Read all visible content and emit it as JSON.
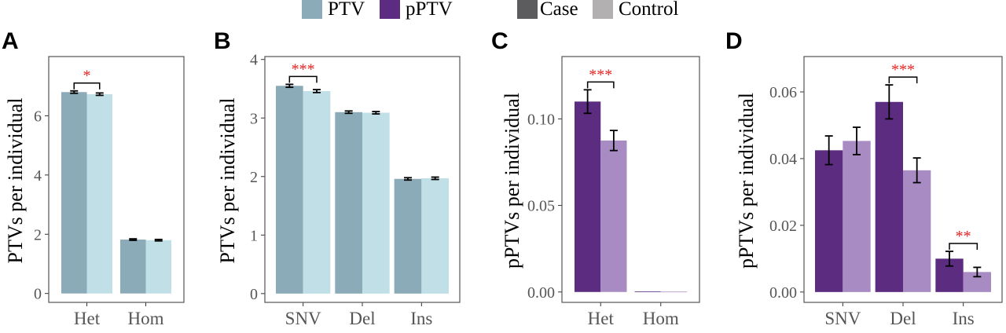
{
  "legend": {
    "items": [
      {
        "label": "PTV",
        "color": "#8aabb7"
      },
      {
        "label": "pPTV",
        "color": "#5b2c7f"
      },
      {
        "label": "Case",
        "color": "#5c5c5f"
      },
      {
        "label": "Control",
        "color": "#b3b0b2"
      }
    ]
  },
  "colors": {
    "ptv_case": "#8aabb7",
    "ptv_control": "#c0dfe6",
    "pptv_case": "#5b2c7f",
    "pptv_control": "#a88bc2",
    "significance": "#e8201f",
    "panel_border": "#555555"
  },
  "chart_data": [
    {
      "panel": "A",
      "type": "bar",
      "ylabel": "PTVs per individual",
      "ylim": [
        -0.3,
        8.0
      ],
      "yticks": [
        0,
        2,
        4,
        6
      ],
      "categories": [
        "Het",
        "Hom"
      ],
      "series": [
        {
          "name": "Case",
          "values": [
            6.8,
            1.82
          ],
          "errors": [
            0.04,
            0.025
          ]
        },
        {
          "name": "Control",
          "values": [
            6.73,
            1.8
          ],
          "errors": [
            0.04,
            0.025
          ]
        }
      ],
      "significance": [
        {
          "category": "Het",
          "label": "*"
        }
      ]
    },
    {
      "panel": "B",
      "type": "bar",
      "ylabel": "PTVs per individual",
      "ylim": [
        -0.15,
        4.05
      ],
      "yticks": [
        0,
        1,
        2,
        3,
        4
      ],
      "categories": [
        "SNV",
        "Del",
        "Ins"
      ],
      "series": [
        {
          "name": "Case",
          "values": [
            3.55,
            3.1,
            1.96
          ],
          "errors": [
            0.025,
            0.02,
            0.02
          ]
        },
        {
          "name": "Control",
          "values": [
            3.46,
            3.09,
            1.97
          ],
          "errors": [
            0.025,
            0.02,
            0.02
          ]
        }
      ],
      "significance": [
        {
          "category": "SNV",
          "label": "***"
        }
      ]
    },
    {
      "panel": "C",
      "type": "bar",
      "ylabel": "pPTVs per individual",
      "ylim": [
        -0.006,
        0.136
      ],
      "yticks": [
        0.0,
        0.05,
        0.1
      ],
      "ytick_labels": [
        "0.00",
        "0.05",
        "0.10"
      ],
      "categories": [
        "Het",
        "Hom"
      ],
      "series": [
        {
          "name": "Case",
          "values": [
            0.11,
            0.0003
          ],
          "errors": [
            0.0068,
            0
          ]
        },
        {
          "name": "Control",
          "values": [
            0.0875,
            0.0002
          ],
          "errors": [
            0.0058,
            0
          ]
        }
      ],
      "significance": [
        {
          "category": "Het",
          "label": "***"
        }
      ]
    },
    {
      "panel": "D",
      "type": "bar",
      "ylabel": "pPTVs per individual",
      "ylim": [
        -0.0031,
        0.0706
      ],
      "yticks": [
        0.0,
        0.02,
        0.04,
        0.06
      ],
      "ytick_labels": [
        "0.00",
        "0.02",
        "0.04",
        "0.06"
      ],
      "categories": [
        "SNV",
        "Del",
        "Ins"
      ],
      "series": [
        {
          "name": "Case",
          "values": [
            0.0425,
            0.057,
            0.01
          ],
          "errors": [
            0.0043,
            0.0051,
            0.0022
          ]
        },
        {
          "name": "Control",
          "values": [
            0.0453,
            0.0365,
            0.006
          ],
          "errors": [
            0.0041,
            0.0037,
            0.0014
          ]
        }
      ],
      "significance": [
        {
          "category": "Del",
          "label": "***"
        },
        {
          "category": "Ins",
          "label": "**"
        }
      ]
    }
  ]
}
